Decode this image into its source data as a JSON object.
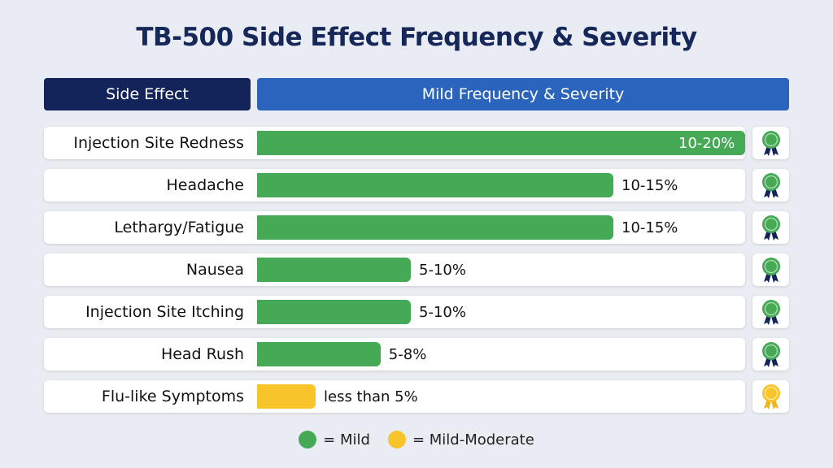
{
  "title": "TB-500 Side Effect Frequency & Severity",
  "header": {
    "col1": "Side Effect",
    "col2": "Mild Frequency & Severity"
  },
  "colors": {
    "mild": "#45a955",
    "mild_moderate": "#f7c52a",
    "ribbon_mild": "#13245a",
    "ribbon_moderate": "#f2b51c"
  },
  "chart_data": {
    "type": "bar",
    "orientation": "horizontal",
    "categories": [
      "Injection Site Redness",
      "Headache",
      "Lethargy/Fatigue",
      "Nausea",
      "Injection Site Itching",
      "Head Rush",
      "Flu-like Symptoms"
    ],
    "labels": [
      "10-20%",
      "10-15%",
      "10-15%",
      "5-10%",
      "5-10%",
      "5-8%",
      "less than 5%"
    ],
    "bar_fill_fraction": [
      1.0,
      0.73,
      0.73,
      0.315,
      0.315,
      0.253,
      0.12
    ],
    "severity": [
      "mild",
      "mild",
      "mild",
      "mild",
      "mild",
      "mild",
      "mild_moderate"
    ],
    "legend": [
      {
        "key": "mild",
        "label": "= Mild"
      },
      {
        "key": "mild_moderate",
        "label": "= Mild-Moderate"
      }
    ]
  }
}
